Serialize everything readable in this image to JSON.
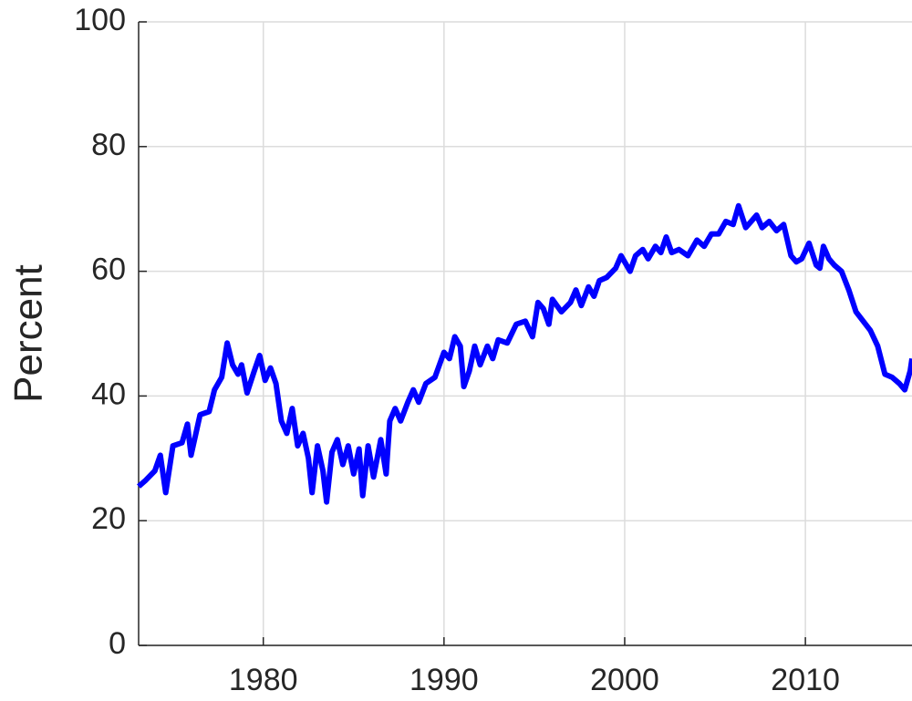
{
  "chart_data": {
    "type": "line",
    "ylabel": "Percent",
    "x": [
      1973.1,
      1973.5,
      1974.0,
      1974.3,
      1974.6,
      1975.0,
      1975.5,
      1975.8,
      1976.0,
      1976.5,
      1977.0,
      1977.3,
      1977.7,
      1978.0,
      1978.3,
      1978.6,
      1978.8,
      1979.1,
      1979.5,
      1979.8,
      1980.1,
      1980.4,
      1980.7,
      1981.0,
      1981.3,
      1981.6,
      1981.9,
      1982.2,
      1982.5,
      1982.7,
      1983.0,
      1983.3,
      1983.5,
      1983.8,
      1984.1,
      1984.4,
      1984.7,
      1985.0,
      1985.3,
      1985.5,
      1985.8,
      1986.1,
      1986.5,
      1986.8,
      1987.0,
      1987.3,
      1987.6,
      1988.0,
      1988.3,
      1988.6,
      1989.0,
      1989.5,
      1990.0,
      1990.3,
      1990.6,
      1990.9,
      1991.1,
      1991.4,
      1991.7,
      1992.0,
      1992.4,
      1992.7,
      1993.0,
      1993.5,
      1994.0,
      1994.5,
      1994.9,
      1995.2,
      1995.5,
      1995.8,
      1996.0,
      1996.5,
      1997.0,
      1997.3,
      1997.6,
      1998.0,
      1998.3,
      1998.6,
      1999.0,
      1999.5,
      1999.8,
      2000.3,
      2000.6,
      2001.0,
      2001.3,
      2001.7,
      2002.0,
      2002.3,
      2002.6,
      2003.0,
      2003.5,
      2004.0,
      2004.4,
      2004.8,
      2005.2,
      2005.6,
      2006.0,
      2006.3,
      2006.7,
      2007.0,
      2007.3,
      2007.6,
      2008.0,
      2008.4,
      2008.8,
      2009.2,
      2009.5,
      2009.8,
      2010.2,
      2010.6,
      2010.8,
      2011.0,
      2011.3,
      2011.6,
      2012.0,
      2012.4,
      2012.8,
      2013.2,
      2013.6,
      2014.0,
      2014.4,
      2014.8,
      2015.2,
      2015.5,
      2015.8,
      2015.9
    ],
    "series": [
      {
        "color": "#0000ff",
        "values": [
          25.5,
          26.5,
          28,
          30.5,
          24.5,
          32,
          32.5,
          35.5,
          30.5,
          37,
          37.5,
          41,
          43,
          48.5,
          45,
          43.5,
          45,
          40.5,
          44,
          46.5,
          42.5,
          44.5,
          42,
          36,
          34,
          38,
          32,
          34,
          30,
          24.5,
          32,
          28,
          23,
          31,
          33,
          29,
          32,
          27.5,
          31.5,
          24,
          32,
          27,
          33,
          27.5,
          36,
          38,
          36,
          39,
          41,
          39,
          42,
          43,
          47,
          46,
          49.5,
          48,
          41.5,
          44,
          48,
          45,
          48,
          46,
          49,
          48.5,
          51.5,
          52,
          49.5,
          55,
          54,
          51.5,
          55.5,
          53.5,
          55,
          57,
          54.5,
          57.5,
          56,
          58.5,
          59,
          60.5,
          62.5,
          60,
          62.5,
          63.5,
          62,
          64,
          63,
          65.5,
          63,
          63.5,
          62.5,
          65,
          64,
          66,
          66,
          68,
          67.5,
          70.5,
          67,
          68,
          69,
          67,
          68,
          66.5,
          67.5,
          62.5,
          61.5,
          62,
          64.5,
          61,
          60.5,
          64,
          62,
          61,
          60,
          57,
          53.5,
          52,
          50.5,
          48,
          43.5,
          43,
          42,
          41,
          44,
          46
        ]
      }
    ],
    "xlim": [
      1973.1,
      2015.9
    ],
    "xticks": [
      1980,
      1990,
      2000,
      2010
    ],
    "ylim": [
      0,
      100
    ],
    "yticks": [
      0,
      20,
      40,
      60,
      80,
      100
    ],
    "grid": true
  }
}
